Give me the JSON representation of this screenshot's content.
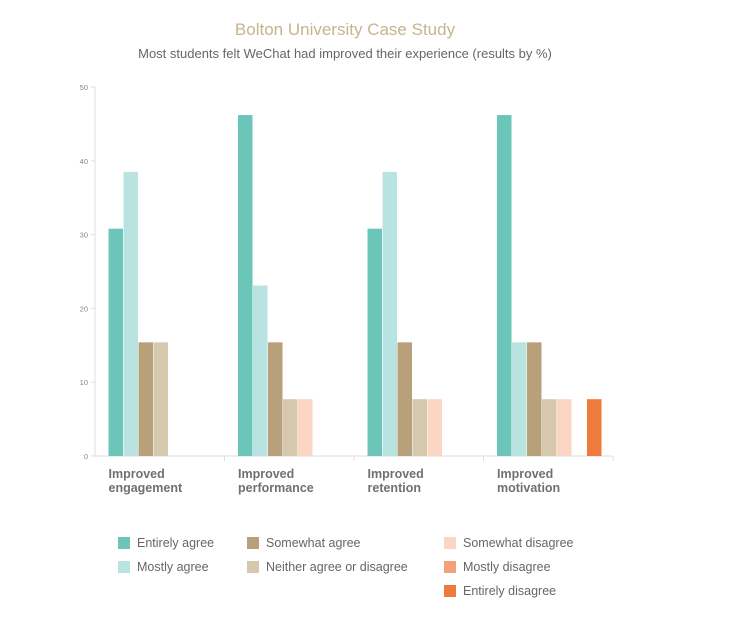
{
  "chart_data": {
    "type": "bar",
    "title": "Bolton University Case Study",
    "subtitle": "Most students felt WeChat had improved their experience (results by %)",
    "categories": [
      [
        "Improved",
        "engagement"
      ],
      [
        "Improved",
        "performance"
      ],
      [
        "Improved",
        "retention"
      ],
      [
        "Improved",
        "motivation"
      ]
    ],
    "ylim": [
      0,
      50
    ],
    "yticks": [
      0,
      10,
      20,
      30,
      40,
      50
    ],
    "grid": false,
    "legend_position": "bottom",
    "series": [
      {
        "name": "Entirely agree",
        "color": "#6bc6b9",
        "values": [
          30.8,
          46.2,
          30.8,
          46.2
        ]
      },
      {
        "name": "Mostly agree",
        "color": "#b9e3e0",
        "values": [
          38.5,
          23.1,
          38.5,
          15.4
        ]
      },
      {
        "name": "Somewhat agree",
        "color": "#b8a07a",
        "values": [
          15.4,
          15.4,
          15.4,
          15.4
        ]
      },
      {
        "name": "Neither agree or disagree",
        "color": "#d6c8ad",
        "values": [
          15.4,
          7.7,
          7.7,
          7.7
        ]
      },
      {
        "name": "Somewhat disagree",
        "color": "#fcd6c4",
        "values": [
          0,
          7.7,
          7.7,
          7.7
        ]
      },
      {
        "name": "Mostly disagree",
        "color": "#f4a07a",
        "values": [
          0,
          0,
          0,
          0
        ]
      },
      {
        "name": "Entirely disagree",
        "color": "#ee7a3c",
        "values": [
          0,
          0,
          0,
          7.7
        ]
      }
    ]
  }
}
